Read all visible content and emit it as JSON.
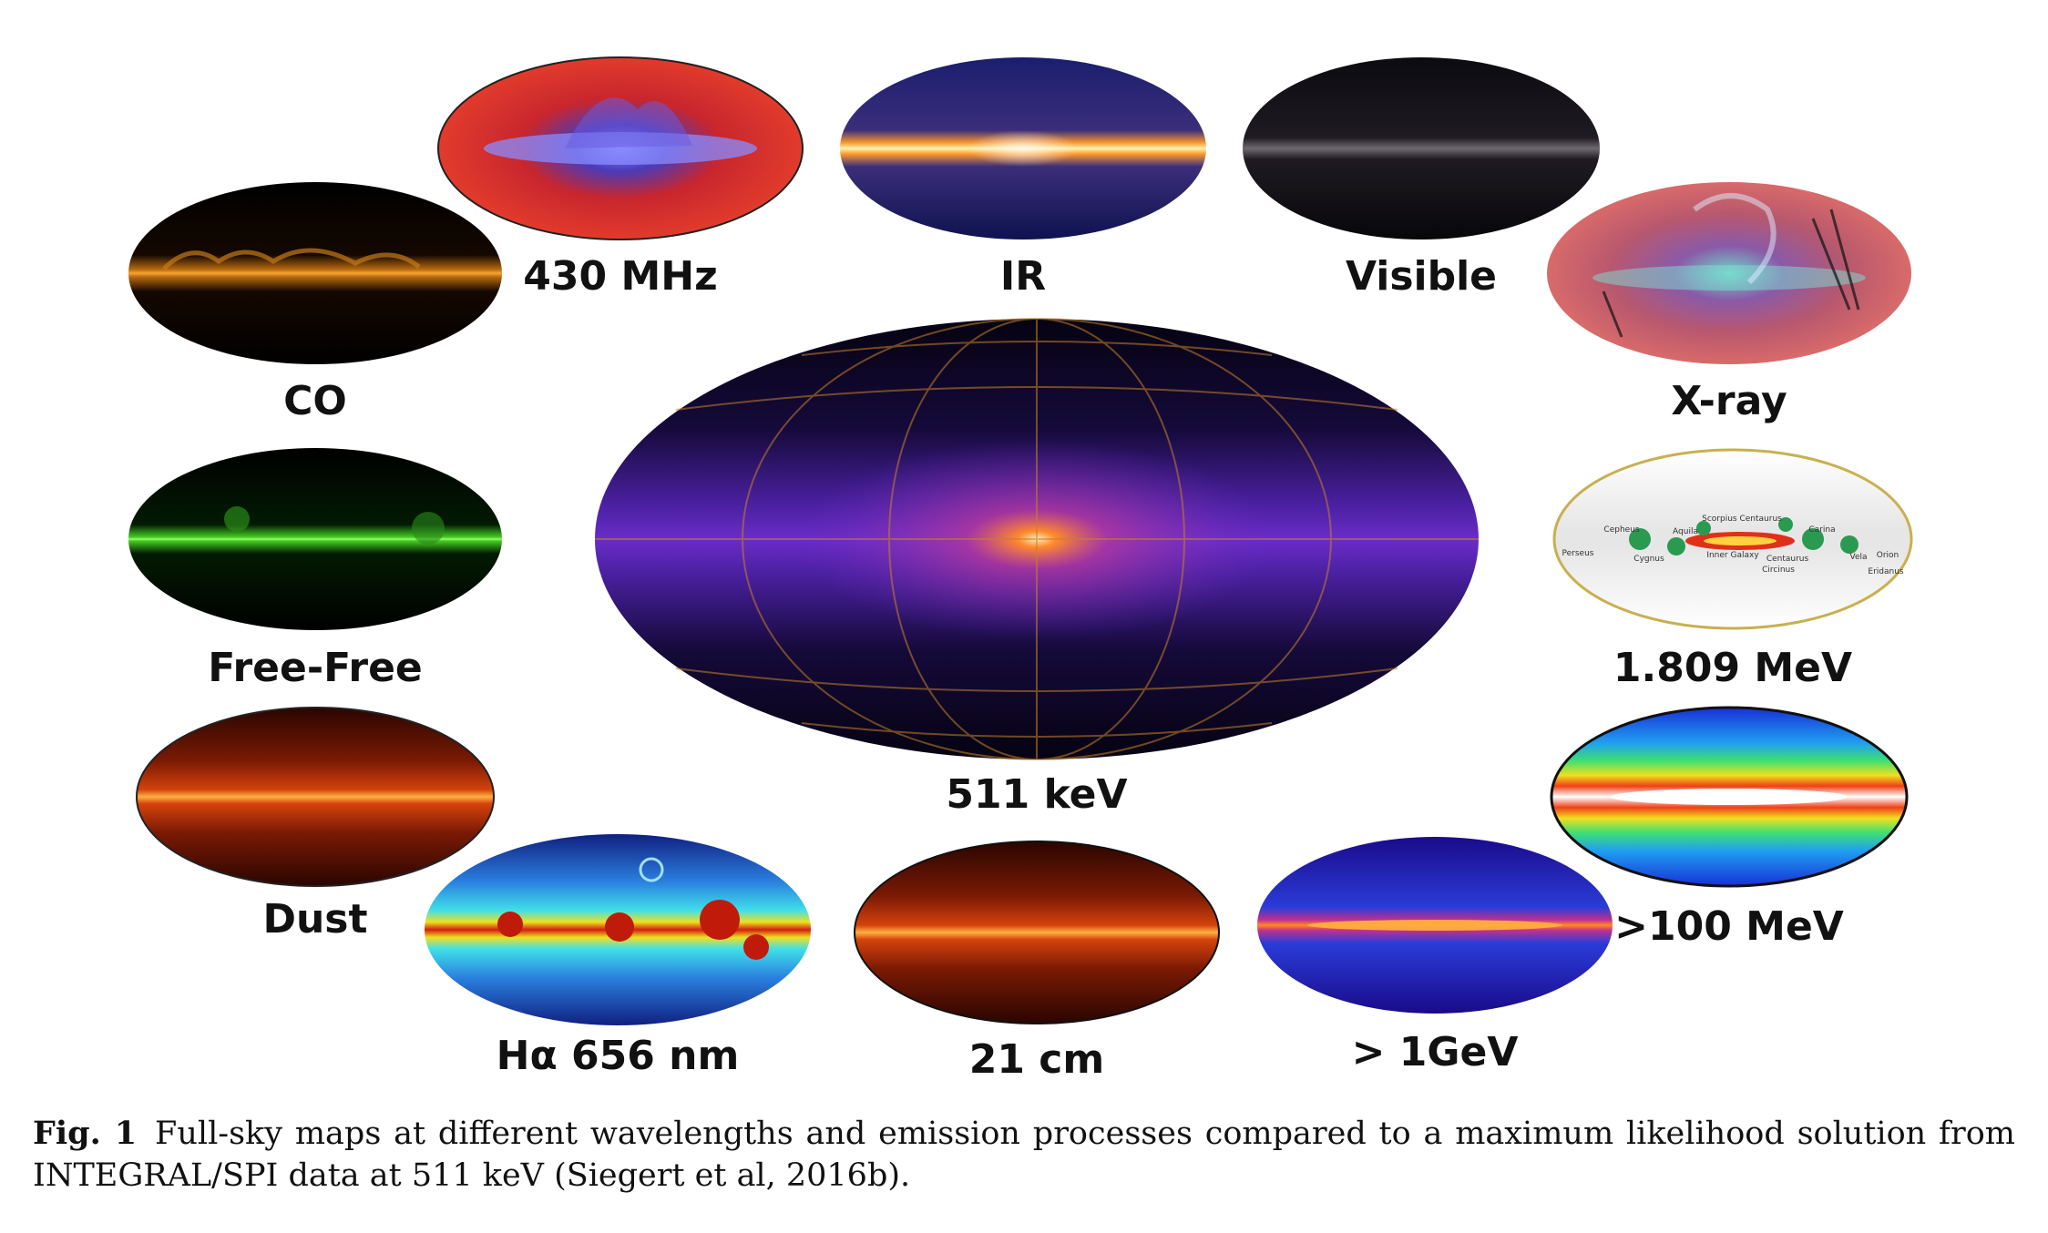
{
  "maps": {
    "ghz430": "430 MHz",
    "ir": "IR",
    "visible": "Visible",
    "co": "CO",
    "xray": "X-ray",
    "center": "511 keV",
    "freefree": "Free-Free",
    "al26": "1.809 MeV",
    "dust": "Dust",
    "gev100": ">100 MeV",
    "halpha": "Hα 656 nm",
    "cm21": "21 cm",
    "gev1": "> 1GeV"
  },
  "al26_regions": [
    "Cepheus",
    "Aquila",
    "Scorpius Centaurus",
    "Carina",
    "Perseus",
    "Cygnus",
    "Inner Galaxy",
    "Centaurus",
    "Circinus",
    "Vela",
    "Orion",
    "Eridanus"
  ],
  "caption": {
    "label": "Fig. 1",
    "text": "Full-sky maps at different wavelengths and emission processes compared to a maximum likelihood solution from INTEGRAL/SPI data at 511 keV (Siegert et al, 2016b)."
  }
}
